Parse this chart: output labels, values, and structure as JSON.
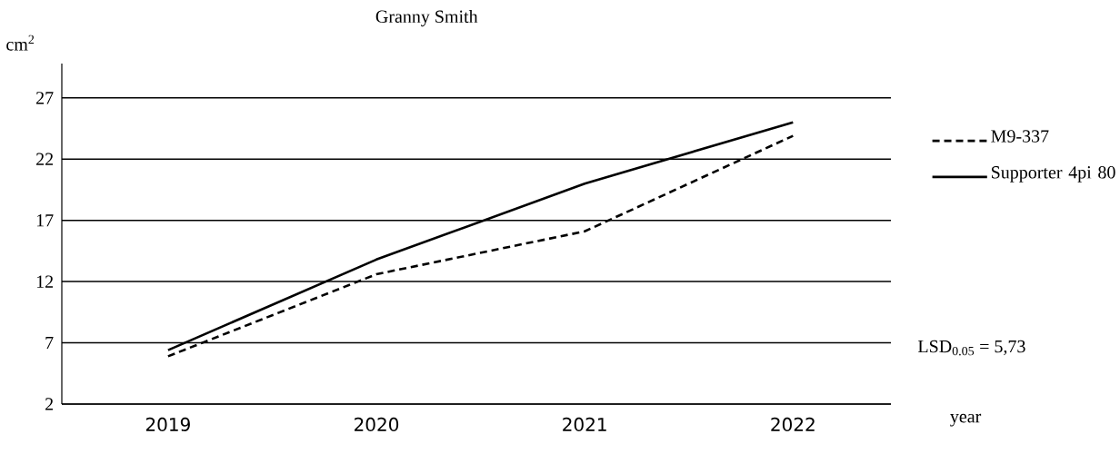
{
  "chart_data": {
    "type": "line",
    "title": "Granny Smith",
    "xlabel": "year",
    "ylabel": "cm$^{2}$",
    "categories": [
      "2019",
      "2020",
      "2021",
      "2022"
    ],
    "series": [
      {
        "name": "M9-337",
        "color": "#000000",
        "line_style": "dashed",
        "values": [
          5.9,
          12.6,
          16.1,
          23.9
        ]
      },
      {
        "name": "Supporter 4pi 80",
        "color": "#000000",
        "line_style": "solid",
        "values": [
          6.4,
          13.8,
          20.0,
          25.0
        ]
      }
    ],
    "ylim": [
      2,
      29.8
    ],
    "yticks": [
      2,
      7,
      12,
      17,
      22,
      27
    ],
    "grid": "y",
    "legend": "right",
    "marker": "none",
    "annotations": [
      "LSD$_{0.05}$ = 5,73"
    ]
  }
}
